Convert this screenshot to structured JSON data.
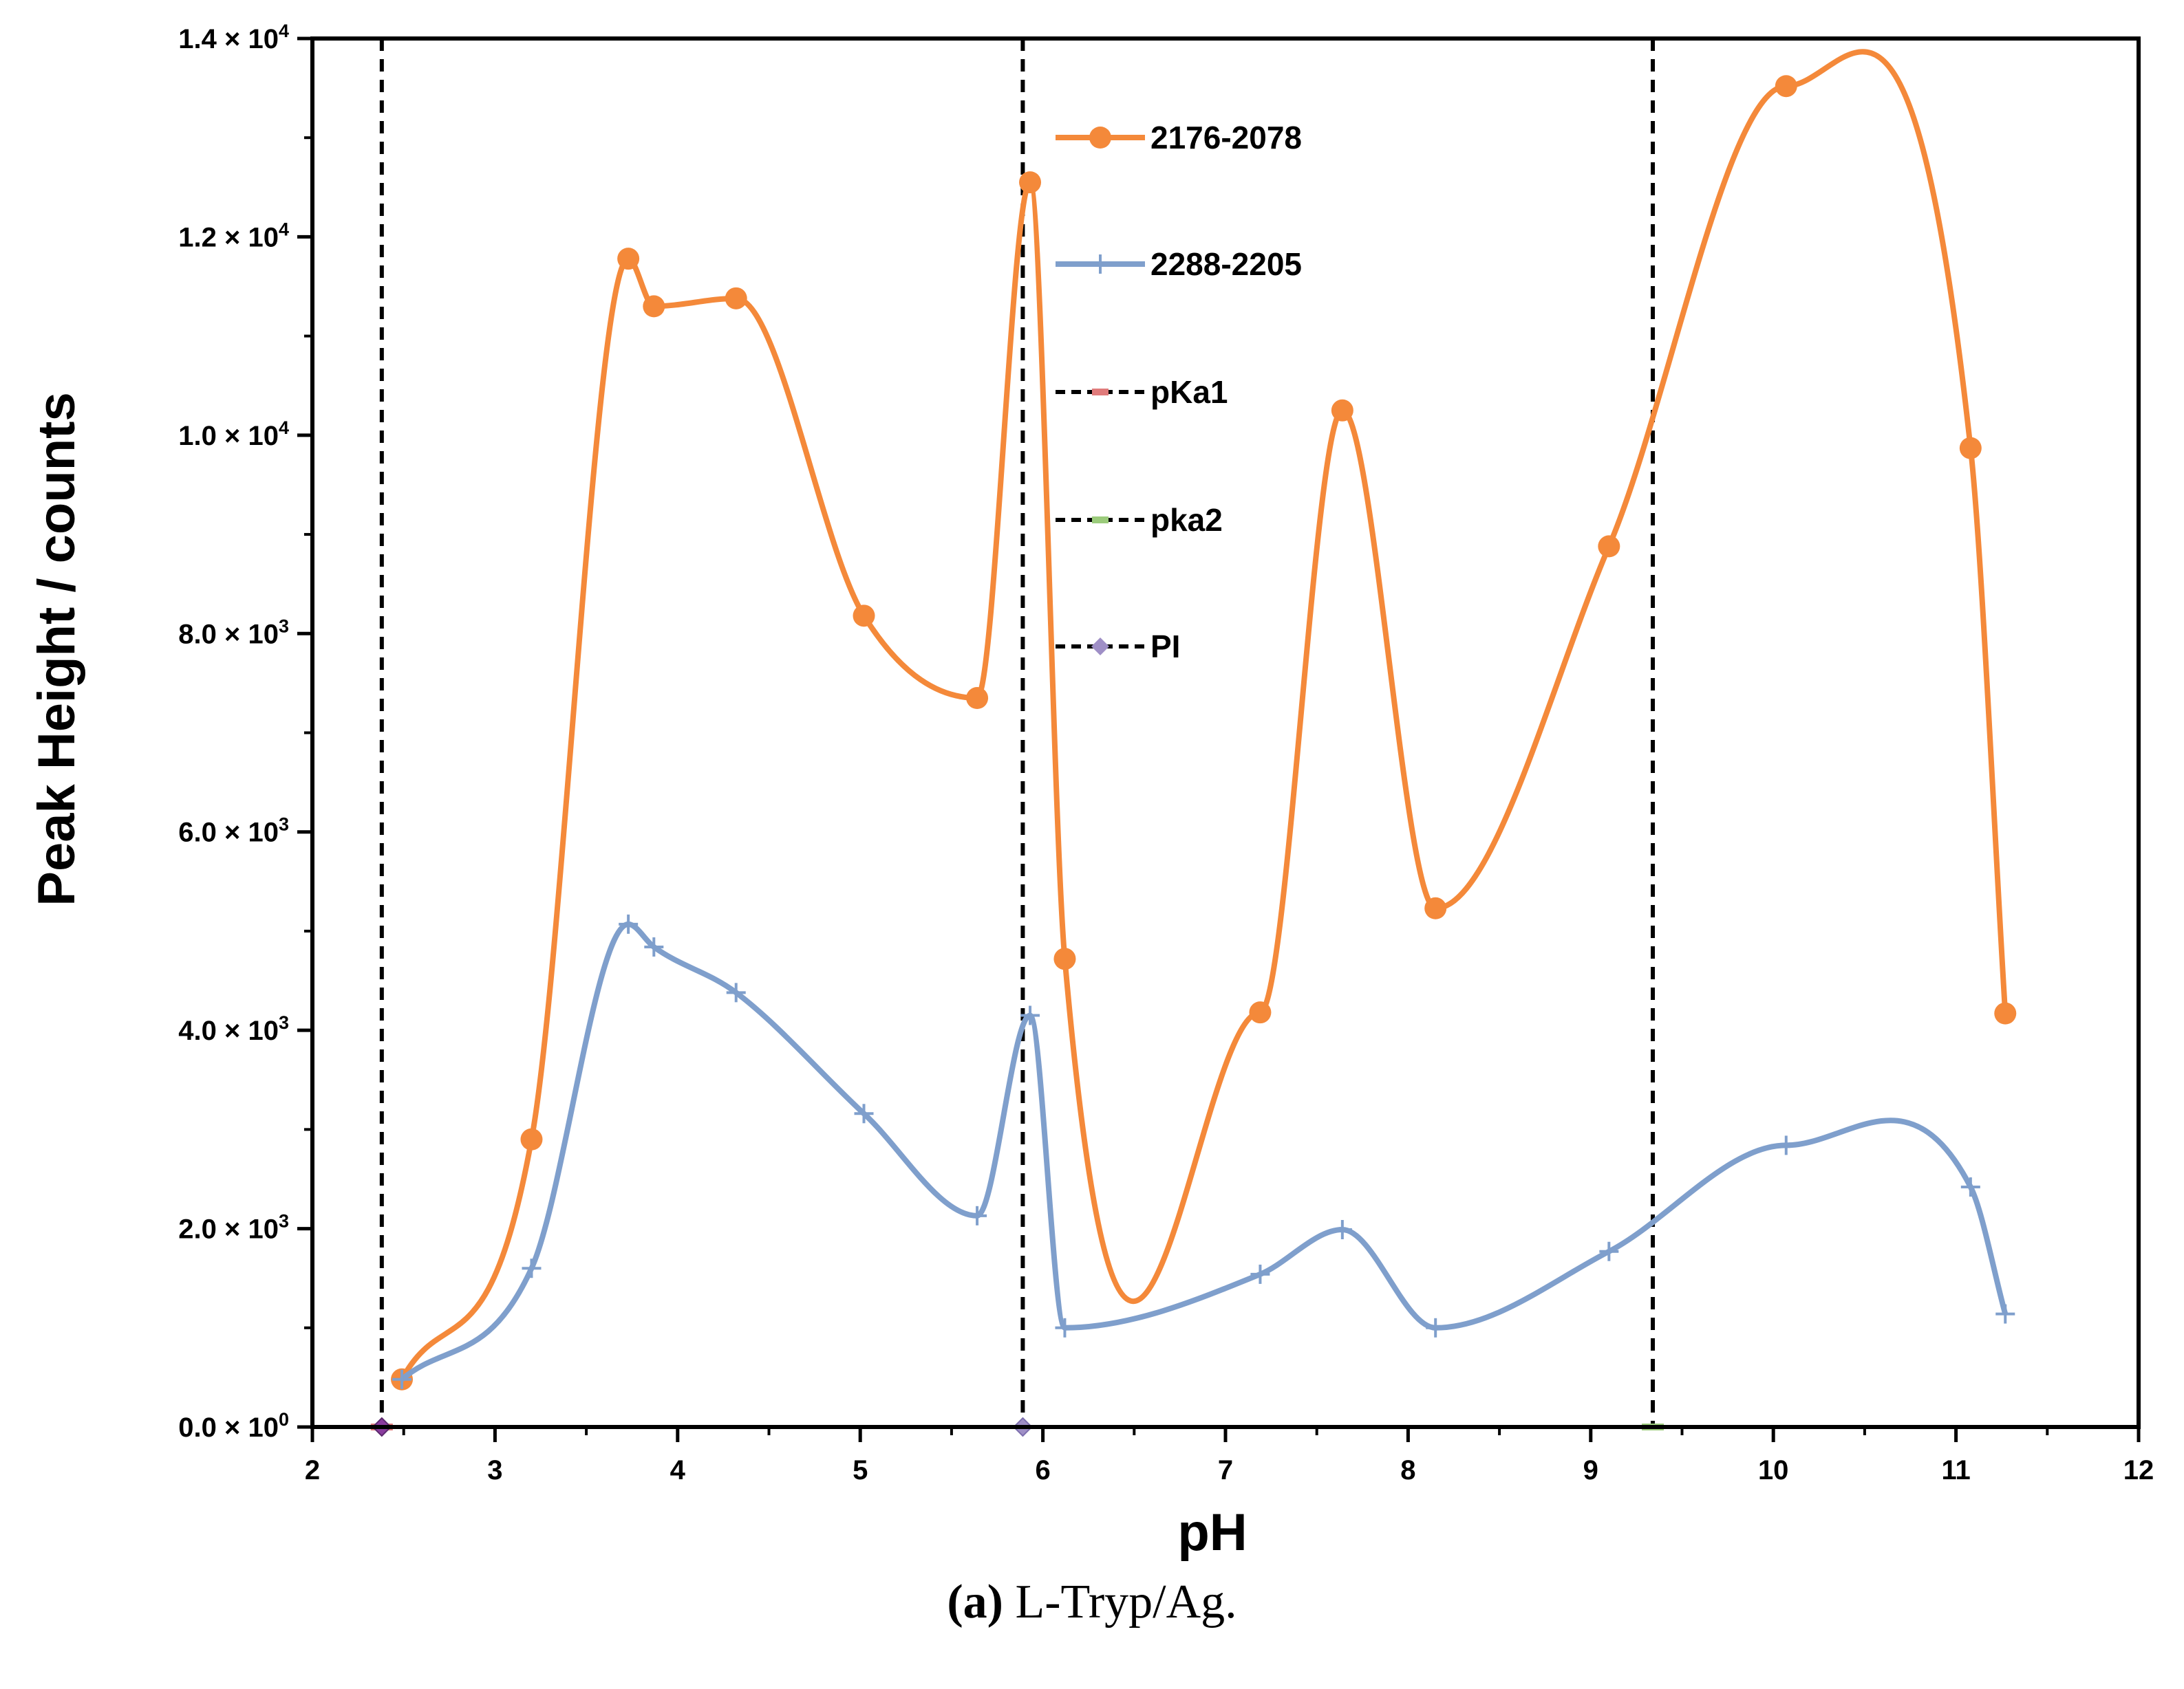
{
  "chart_data": {
    "type": "line",
    "title": "",
    "xlabel": "pH",
    "ylabel": "Peak Height / counts",
    "xlim": [
      2,
      12
    ],
    "ylim": [
      0,
      14000
    ],
    "x_ticks": [
      "2",
      "3",
      "4",
      "5",
      "6",
      "7",
      "8",
      "9",
      "10",
      "11",
      "12"
    ],
    "y_ticks": [
      {
        "value": 0,
        "mant": "0.0",
        "exp": "0"
      },
      {
        "value": 2000,
        "mant": "2.0",
        "exp": "3"
      },
      {
        "value": 4000,
        "mant": "4.0",
        "exp": "3"
      },
      {
        "value": 6000,
        "mant": "6.0",
        "exp": "3"
      },
      {
        "value": 8000,
        "mant": "8.0",
        "exp": "3"
      },
      {
        "value": 10000,
        "mant": "1.0",
        "exp": "4"
      },
      {
        "value": 12000,
        "mant": "1.2",
        "exp": "4"
      },
      {
        "value": 14000,
        "mant": "1.4",
        "exp": "4"
      }
    ],
    "tick_times_symbol": "× 10",
    "series": [
      {
        "name": "2176-2078",
        "color": "#F4893A",
        "marker": "circle",
        "x": [
          2.49,
          3.2,
          3.73,
          3.87,
          4.32,
          5.02,
          5.64,
          5.93,
          6.12,
          7.19,
          7.64,
          8.15,
          9.1,
          10.07,
          11.08,
          11.27
        ],
        "y": [
          480,
          2900,
          11780,
          11300,
          11380,
          8180,
          7350,
          12550,
          4720,
          4180,
          10250,
          5230,
          8880,
          13520,
          9870,
          4170
        ]
      },
      {
        "name": "2288-2205",
        "color": "#7F9FCC",
        "marker": "plus",
        "x": [
          2.49,
          3.2,
          3.73,
          3.87,
          4.32,
          5.02,
          5.64,
          5.93,
          6.12,
          7.19,
          7.64,
          8.15,
          9.1,
          10.07,
          11.08,
          11.27
        ],
        "y": [
          480,
          1600,
          5070,
          4840,
          4380,
          3160,
          2130,
          4150,
          1000,
          1540,
          1990,
          1000,
          1770,
          2840,
          2420,
          1140
        ]
      }
    ],
    "vertical_lines": [
      {
        "name": "pKa1",
        "x": 2.38,
        "marker_color": "#E07B7B",
        "marker": "dash"
      },
      {
        "name": "pka2",
        "x": 9.34,
        "marker_color": "#9BCB7B",
        "marker": "dash"
      },
      {
        "name": "PI",
        "x": 5.89,
        "marker_color": "#9F8FC6",
        "marker": "diamond"
      }
    ],
    "legend_position": "top-center"
  },
  "caption": {
    "label": "(a)",
    "text": " L-Tryp/Ag."
  }
}
